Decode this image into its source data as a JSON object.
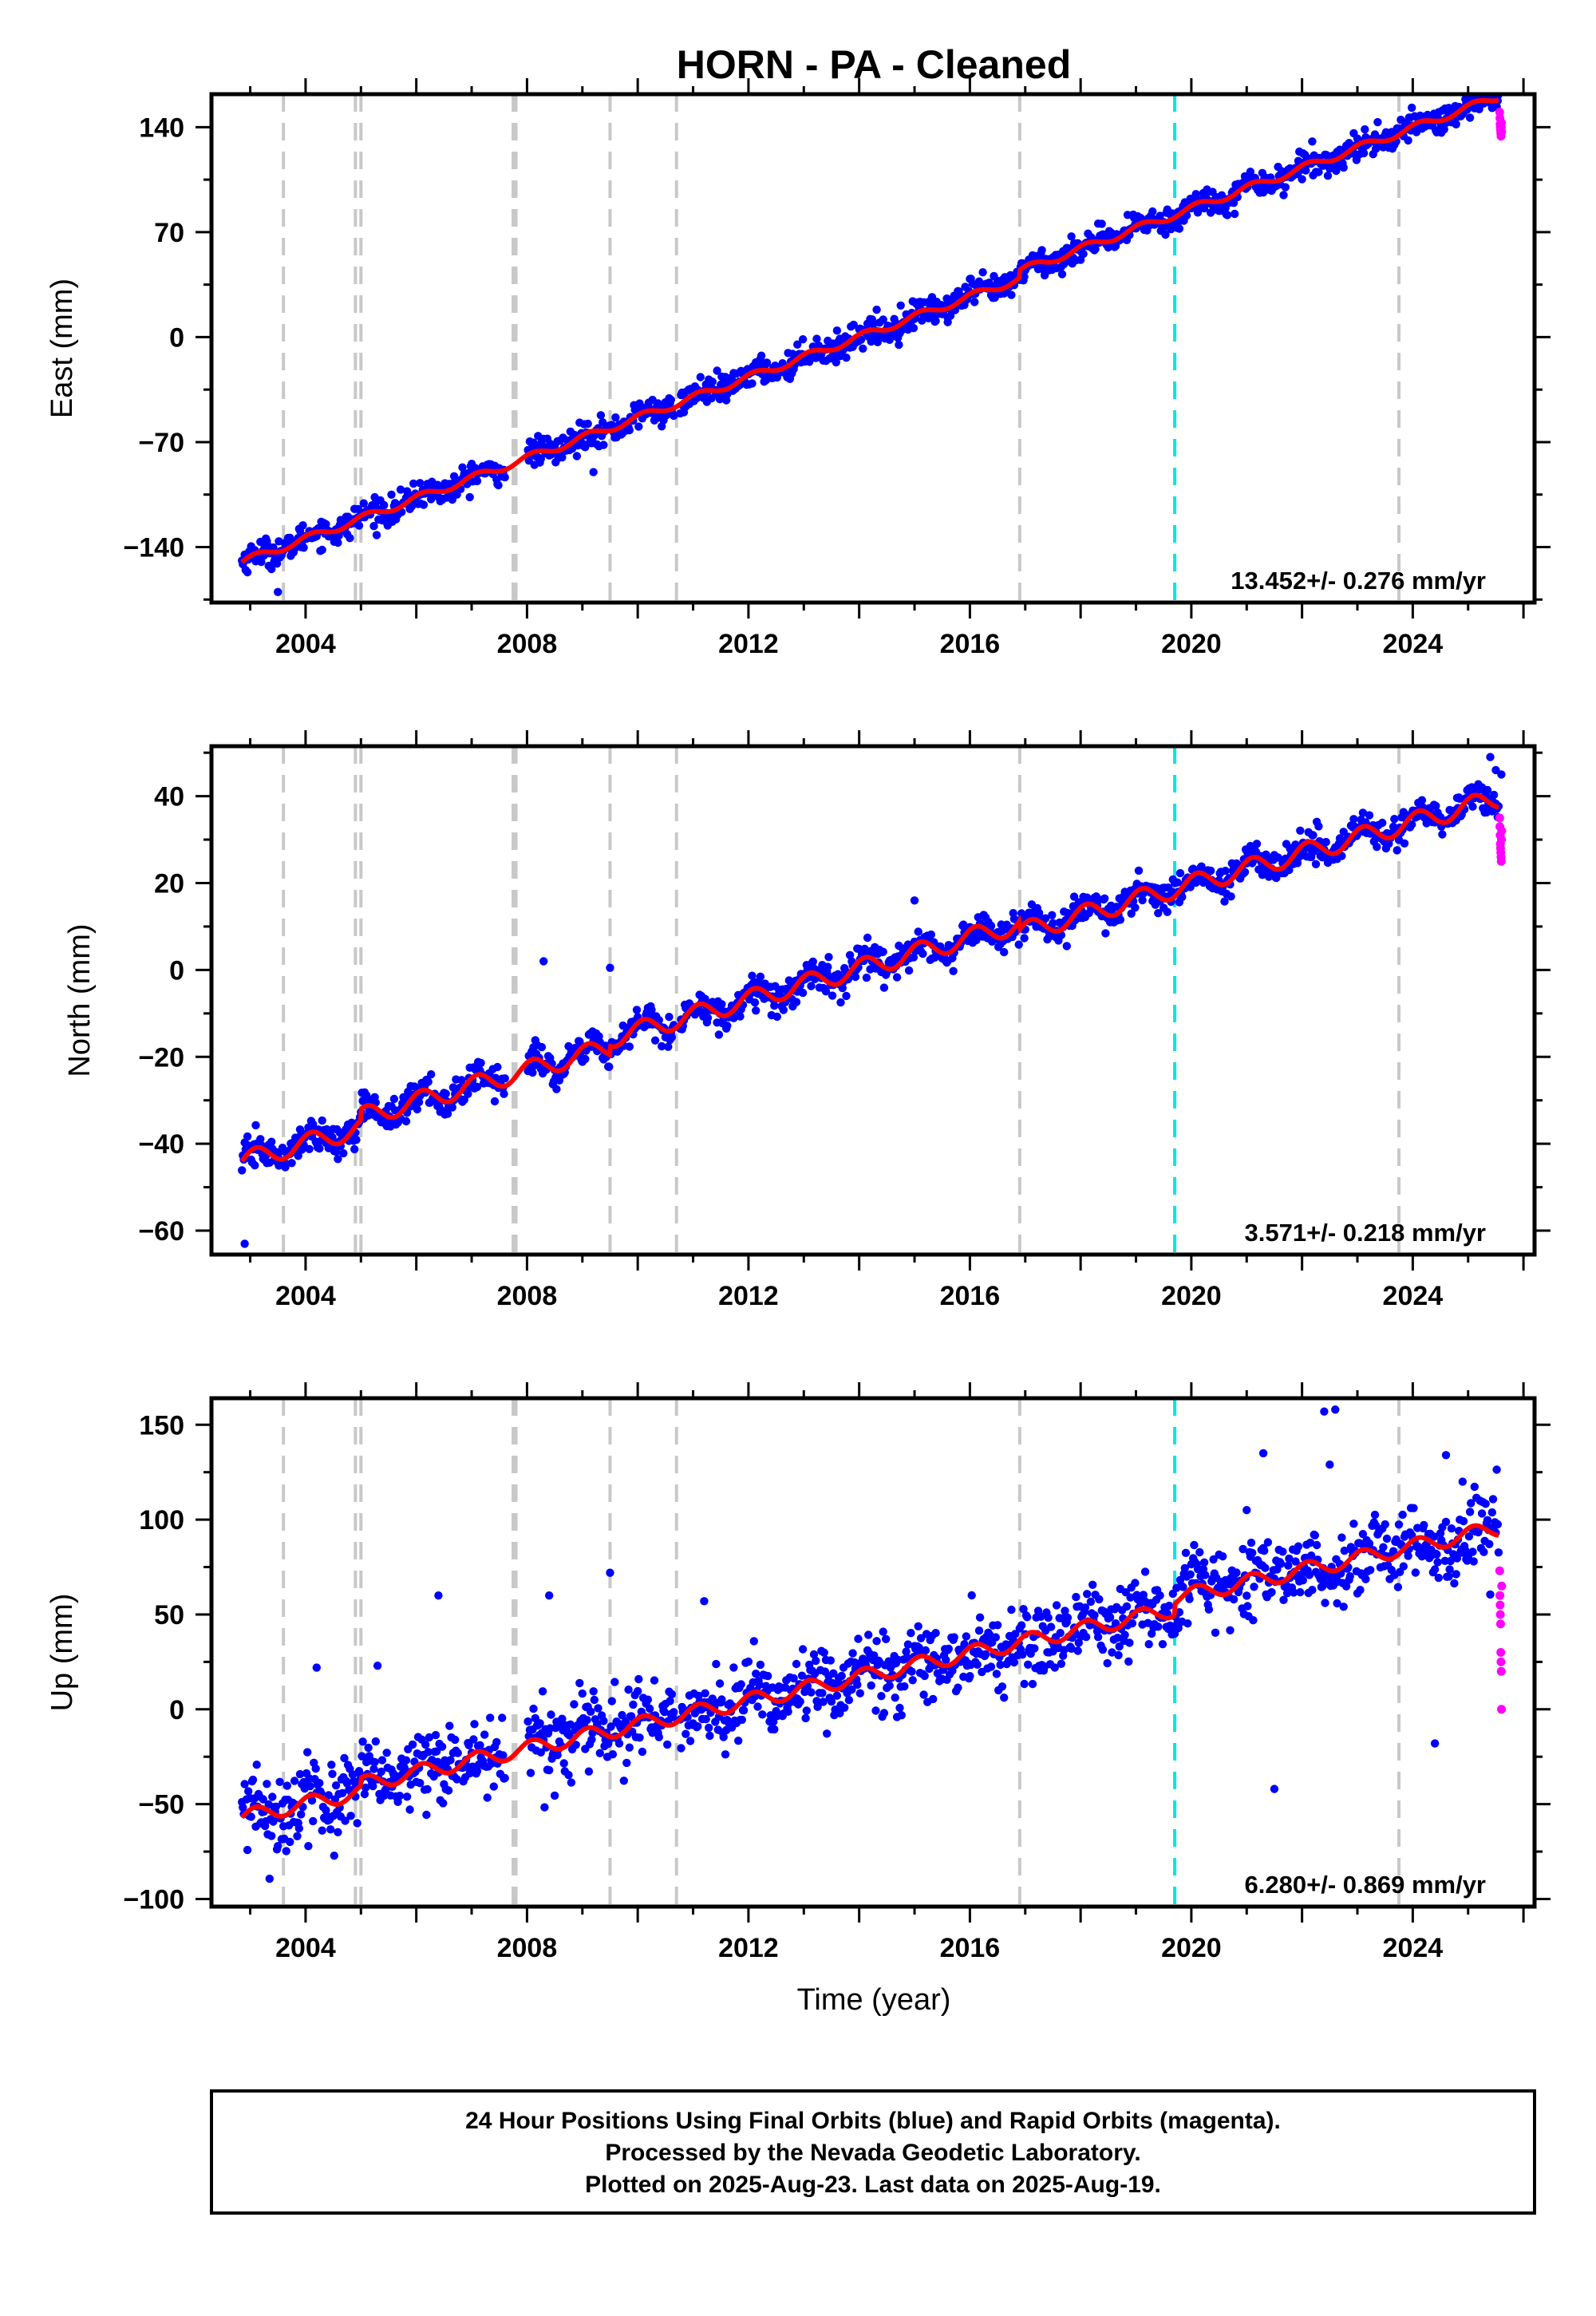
{
  "title": "HORN  - PA - Cleaned",
  "colors": {
    "final_orbits": "#0000ff",
    "rapid_orbits": "#ff00ff",
    "trend_model": "#ff0000",
    "equipment_change": "#c8c8c8",
    "earthquake": "#00e5ee",
    "frame": "#000000"
  },
  "chart_data": [
    {
      "type": "scatter",
      "component": "East",
      "ylabel": "East (mm)",
      "xlim": [
        2002.3,
        2026.2
      ],
      "ylim": [
        -177,
        162
      ],
      "yticks": [
        -140,
        -70,
        0,
        70,
        140
      ],
      "xticks": [
        2004,
        2008,
        2012,
        2016,
        2020,
        2024
      ],
      "start_value": -150,
      "rate_mm_yr": 13.452,
      "rate_label": "13.452+/- 0.276 mm/yr",
      "scatter_sd": 4.5,
      "seasonal_amp": 2.5,
      "offsets_mm": [
        [
          2016.9,
          5
        ]
      ],
      "outliers": [
        [
          2003.5,
          -170
        ],
        [
          2009.2,
          -90
        ],
        [
          2015.6,
          10
        ],
        [
          2025.5,
          155
        ]
      ],
      "rapid_values": [
        150,
        146,
        142,
        140,
        138,
        136,
        134,
        140,
        143,
        137
      ]
    },
    {
      "type": "scatter",
      "component": "North",
      "ylabel": "North (mm)",
      "xlim": [
        2002.3,
        2026.2
      ],
      "ylim": [
        -65.5,
        51.5
      ],
      "yticks": [
        -60,
        -40,
        -20,
        0,
        20,
        40
      ],
      "xticks": [
        2004,
        2008,
        2012,
        2016,
        2020,
        2024
      ],
      "start_value": -44,
      "rate_mm_yr": 3.571,
      "rate_label": "3.571+/- 0.218 mm/yr",
      "scatter_sd": 1.8,
      "seasonal_amp": 2.2,
      "offsets_mm": [
        [
          2005.0,
          2.5
        ],
        [
          2009.5,
          2
        ],
        [
          2016.9,
          -2
        ]
      ],
      "outliers": [
        [
          2002.9,
          -63
        ],
        [
          2008.3,
          2
        ],
        [
          2009.5,
          0.5
        ],
        [
          2015.0,
          16
        ],
        [
          2018.8,
          18
        ],
        [
          2025.4,
          49
        ],
        [
          2025.5,
          46
        ],
        [
          2025.6,
          45
        ]
      ],
      "rapid_values": [
        35,
        33,
        31,
        29,
        28,
        27,
        26,
        25,
        30,
        32
      ]
    },
    {
      "type": "scatter",
      "component": "Up",
      "ylabel": "Up (mm)",
      "xlabel": "Time (year)",
      "xlim": [
        2002.3,
        2026.2
      ],
      "ylim": [
        -104,
        164
      ],
      "yticks": [
        -100,
        -50,
        0,
        50,
        100,
        150
      ],
      "xticks": [
        2004,
        2008,
        2012,
        2016,
        2020,
        2024
      ],
      "start_value": -57,
      "rate_mm_yr": 6.28,
      "rate_label": "6.280+/- 0.869 mm/yr",
      "scatter_sd": 10,
      "seasonal_amp": 4,
      "offsets_mm": [
        [
          2005.0,
          4
        ],
        [
          2019.7,
          6
        ]
      ],
      "outliers": [
        [
          2006.4,
          60
        ],
        [
          2008.4,
          60
        ],
        [
          2009.5,
          72
        ],
        [
          2011.2,
          57
        ],
        [
          2021.0,
          105
        ],
        [
          2021.3,
          135
        ],
        [
          2022.4,
          157
        ],
        [
          2022.6,
          158
        ],
        [
          2022.5,
          129
        ],
        [
          2024.6,
          134
        ],
        [
          2024.9,
          120
        ],
        [
          2021.5,
          -42
        ],
        [
          2024.4,
          -18
        ],
        [
          2004.2,
          22
        ],
        [
          2005.3,
          23
        ]
      ],
      "rapid_values": [
        73,
        60,
        55,
        50,
        45,
        30,
        25,
        20,
        0,
        65
      ]
    }
  ],
  "data_gaps": [
    [
      2007.6,
      2008.0
    ],
    [
      2010.65,
      2010.75
    ]
  ],
  "equipment_change_years": [
    2003.6,
    2004.9,
    2005.0,
    2007.75,
    2007.8,
    2009.5,
    2010.7,
    2016.9,
    2023.75
  ],
  "earthquake_years": [
    2019.7
  ],
  "footer": {
    "line1": "24 Hour Positions Using Final Orbits (blue) and Rapid Orbits (magenta).",
    "line2": "Processed by the Nevada Geodetic Laboratory.",
    "line3": "Plotted on 2025-Aug-23. Last data on 2025-Aug-19."
  }
}
